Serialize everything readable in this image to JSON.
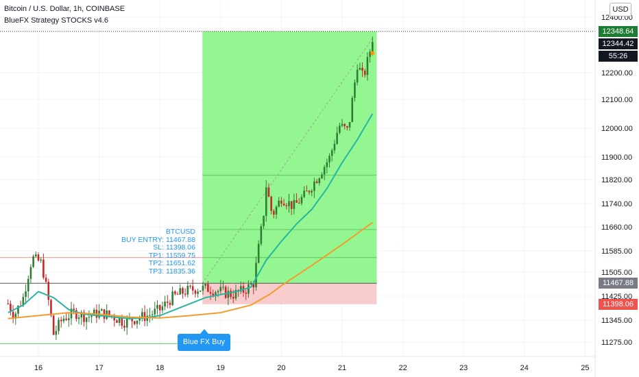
{
  "header": {
    "title": "Bitcoin / U.S. Dollar, 1h, COINBASE",
    "indicator": "BlueFX Strategy STOCKS v4.6"
  },
  "currency_button": "USD",
  "price_tags": {
    "last": {
      "label": "12348.64",
      "value": 12348.64,
      "color": "#26a69a"
    },
    "current": {
      "label": "12344.42",
      "value": 12344.42,
      "color": "#131722"
    },
    "countdown": {
      "label": "55:26",
      "color": "#131722"
    },
    "entry": {
      "label": "11467.88",
      "value": 11467.88,
      "color": "#787b86"
    },
    "stop": {
      "label": "11398.06",
      "value": 11398.06,
      "color": "#ef5350"
    }
  },
  "callout": {
    "label": "Blue FX Buy"
  },
  "trade_info": {
    "symbol": "BTCUSD",
    "entry": "BUY ENTRY: 11467.88",
    "sl": "SL: 11398.06",
    "tp1": "TP1: 11559.75",
    "tp2": "TP2: 11651.62",
    "tp3": "TP3: 11835.36"
  },
  "chart_data": {
    "type": "candlestick",
    "title": "Bitcoin / U.S. Dollar, 1h, COINBASE",
    "y_axis": {
      "ticks": [
        "11275.00",
        "11345.00",
        "11425.00",
        "11505.00",
        "11585.00",
        "11660.00",
        "11740.00",
        "11820.00",
        "11900.00",
        "12000.00",
        "12100.00",
        "12200.00",
        "12400.00"
      ],
      "tick_values": [
        11275,
        11345,
        11425,
        11505,
        11585,
        11660,
        11740,
        11820,
        11900,
        12000,
        12100,
        12200,
        12400
      ],
      "range": [
        11235,
        12420
      ]
    },
    "x_axis": {
      "ticks": [
        "16",
        "17",
        "18",
        "19",
        "20",
        "21",
        "22",
        "23",
        "24",
        "25"
      ]
    },
    "levels": {
      "entry": 11467.88,
      "stop_loss": 11398.06,
      "tp1": 11559.75,
      "tp2": 11651.62,
      "tp3": 11835.36,
      "take_profit_box_top": 12348.64,
      "upper_left_line": 11560,
      "lower_left_line": 11270
    },
    "price_path": [
      [
        15.5,
        11400
      ],
      [
        15.6,
        11360
      ],
      [
        15.75,
        11420
      ],
      [
        15.9,
        11560
      ],
      [
        16.05,
        11540
      ],
      [
        16.15,
        11430
      ],
      [
        16.25,
        11300
      ],
      [
        16.4,
        11350
      ],
      [
        16.6,
        11370
      ],
      [
        16.8,
        11355
      ],
      [
        17.0,
        11370
      ],
      [
        17.2,
        11360
      ],
      [
        17.4,
        11340
      ],
      [
        17.6,
        11350
      ],
      [
        17.8,
        11360
      ],
      [
        18.0,
        11380
      ],
      [
        18.2,
        11420
      ],
      [
        18.4,
        11440
      ],
      [
        18.6,
        11450
      ],
      [
        18.8,
        11450
      ],
      [
        19.0,
        11440
      ],
      [
        19.2,
        11430
      ],
      [
        19.4,
        11445
      ],
      [
        19.55,
        11470
      ],
      [
        19.6,
        11560
      ],
      [
        19.7,
        11690
      ],
      [
        19.75,
        11800
      ],
      [
        19.85,
        11700
      ],
      [
        20.0,
        11760
      ],
      [
        20.2,
        11730
      ],
      [
        20.4,
        11770
      ],
      [
        20.6,
        11830
      ],
      [
        20.8,
        11900
      ],
      [
        20.95,
        12010
      ],
      [
        21.1,
        11990
      ],
      [
        21.25,
        12230
      ],
      [
        21.35,
        12180
      ],
      [
        21.45,
        12270
      ],
      [
        21.52,
        12345
      ]
    ],
    "series": [
      {
        "name": "",
        "color": "#26b5a0",
        "points": [
          [
            15.5,
            11370
          ],
          [
            15.75,
            11395
          ],
          [
            16.0,
            11440
          ],
          [
            16.25,
            11420
          ],
          [
            16.5,
            11380
          ],
          [
            16.75,
            11365
          ],
          [
            17.0,
            11360
          ],
          [
            17.25,
            11355
          ],
          [
            17.5,
            11350
          ],
          [
            17.75,
            11352
          ],
          [
            18.0,
            11360
          ],
          [
            18.25,
            11380
          ],
          [
            18.5,
            11400
          ],
          [
            18.75,
            11420
          ],
          [
            19.0,
            11430
          ],
          [
            19.25,
            11440
          ],
          [
            19.5,
            11455
          ],
          [
            19.75,
            11550
          ],
          [
            20.0,
            11615
          ],
          [
            20.25,
            11670
          ],
          [
            20.5,
            11720
          ],
          [
            20.75,
            11790
          ],
          [
            21.0,
            11880
          ],
          [
            21.25,
            11960
          ],
          [
            21.5,
            12050
          ]
        ]
      },
      {
        "name": "",
        "color": "#f39c2b",
        "points": [
          [
            15.5,
            11350
          ],
          [
            16.0,
            11360
          ],
          [
            16.5,
            11370
          ],
          [
            17.0,
            11365
          ],
          [
            17.5,
            11355
          ],
          [
            18.0,
            11352
          ],
          [
            18.5,
            11360
          ],
          [
            19.0,
            11370
          ],
          [
            19.5,
            11395
          ],
          [
            19.8,
            11430
          ],
          [
            20.0,
            11460
          ],
          [
            20.5,
            11530
          ],
          [
            21.0,
            11605
          ],
          [
            21.5,
            11675
          ]
        ]
      }
    ]
  }
}
